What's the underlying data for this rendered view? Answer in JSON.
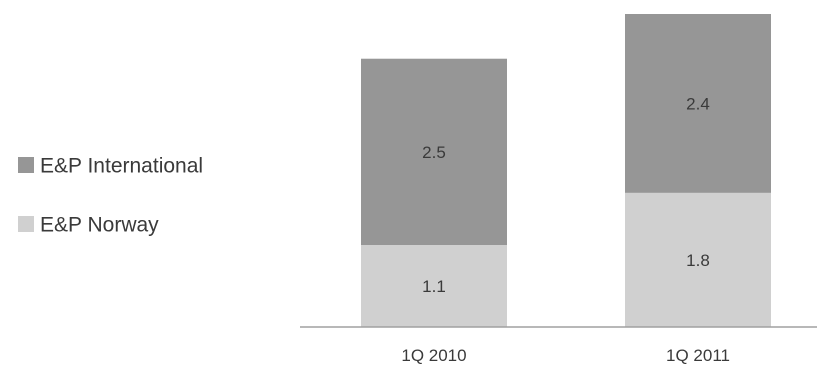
{
  "chart_data": {
    "type": "bar",
    "stacked": true,
    "categories": [
      "1Q 2010",
      "1Q 2011"
    ],
    "series": [
      {
        "name": "E&P Norway",
        "values": [
          1.1,
          1.8
        ],
        "color": "#d0d0d0"
      },
      {
        "name": "E&P International",
        "values": [
          2.5,
          2.4
        ],
        "color": "#969696"
      }
    ],
    "legend_position": "left",
    "legend_order": [
      "E&P International",
      "E&P Norway"
    ],
    "grid": false,
    "ylim": [
      0,
      4.2
    ],
    "axis_color": "#a0a0a0",
    "text_color": "#3a3a3a"
  }
}
